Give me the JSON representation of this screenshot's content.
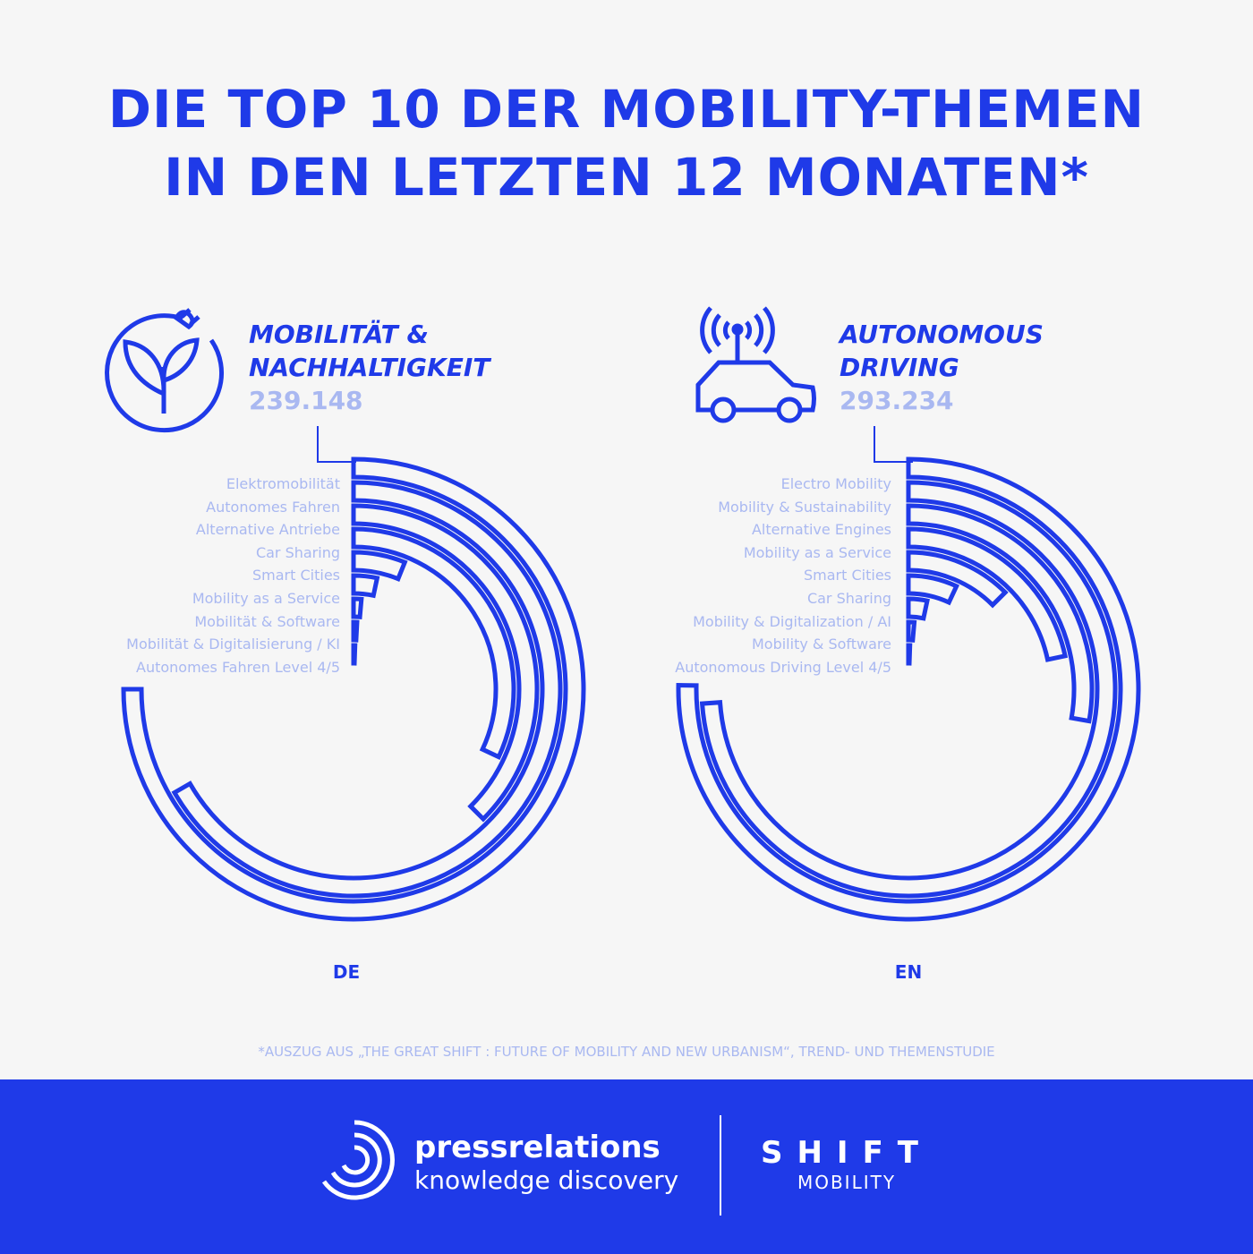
{
  "header": {
    "title_line1": "DIE TOP 10 DER MOBILITY-THEMEN",
    "title_line2": "IN DEN LETZTEN 12 MONATEN*"
  },
  "chart_data": [
    {
      "type": "radial-bar",
      "title_line1": "MOBILITÄT &",
      "title_line2": "NACHHALTIGKEIT",
      "total": "239.148",
      "region": "DE",
      "categories": [
        "Elektromobilität",
        "Autonomes Fahren",
        "Alternative Antriebe",
        "Car Sharing",
        "Smart Cities",
        "Mobility as a Service",
        "Mobilität & Software",
        "Mobilität & Digitalisierung / KI",
        "Autonomes Fahren Level 4/5"
      ],
      "values_degrees": [
        270,
        240,
        135,
        115,
        22,
        12,
        5,
        3,
        2
      ],
      "icon": "leaf-plug-icon"
    },
    {
      "type": "radial-bar",
      "title_line1": "AUTONOMOUS",
      "title_line2": "DRIVING",
      "total": "293.234",
      "region": "EN",
      "categories": [
        "Electro Mobility",
        "Mobility & Sustainability",
        "Alternative Engines",
        "Mobility as a Service",
        "Smart Cities",
        "Car Sharing",
        "Mobility & Digitalization / AI",
        "Mobility & Software",
        "Autonomous Driving Level 4/5"
      ],
      "values_degrees": [
        271,
        266,
        100,
        78,
        45,
        25,
        12,
        5,
        2
      ],
      "icon": "antenna-car-icon"
    }
  ],
  "footnote": "*AUSZUG AUS „THE GREAT SHIFT : FUTURE OF MOBILITY AND NEW URBANISM“, TREND- UND THEMENSTUDIE",
  "footer": {
    "brand1_line1": "pressrelations",
    "brand1_line2": "knowledge discovery",
    "brand2_line1": "SHIFT",
    "brand2_line2": "MOBILITY"
  },
  "colors": {
    "accent": "#1f3ae8",
    "muted": "#a9b8f1",
    "background": "#f6f6f6"
  }
}
